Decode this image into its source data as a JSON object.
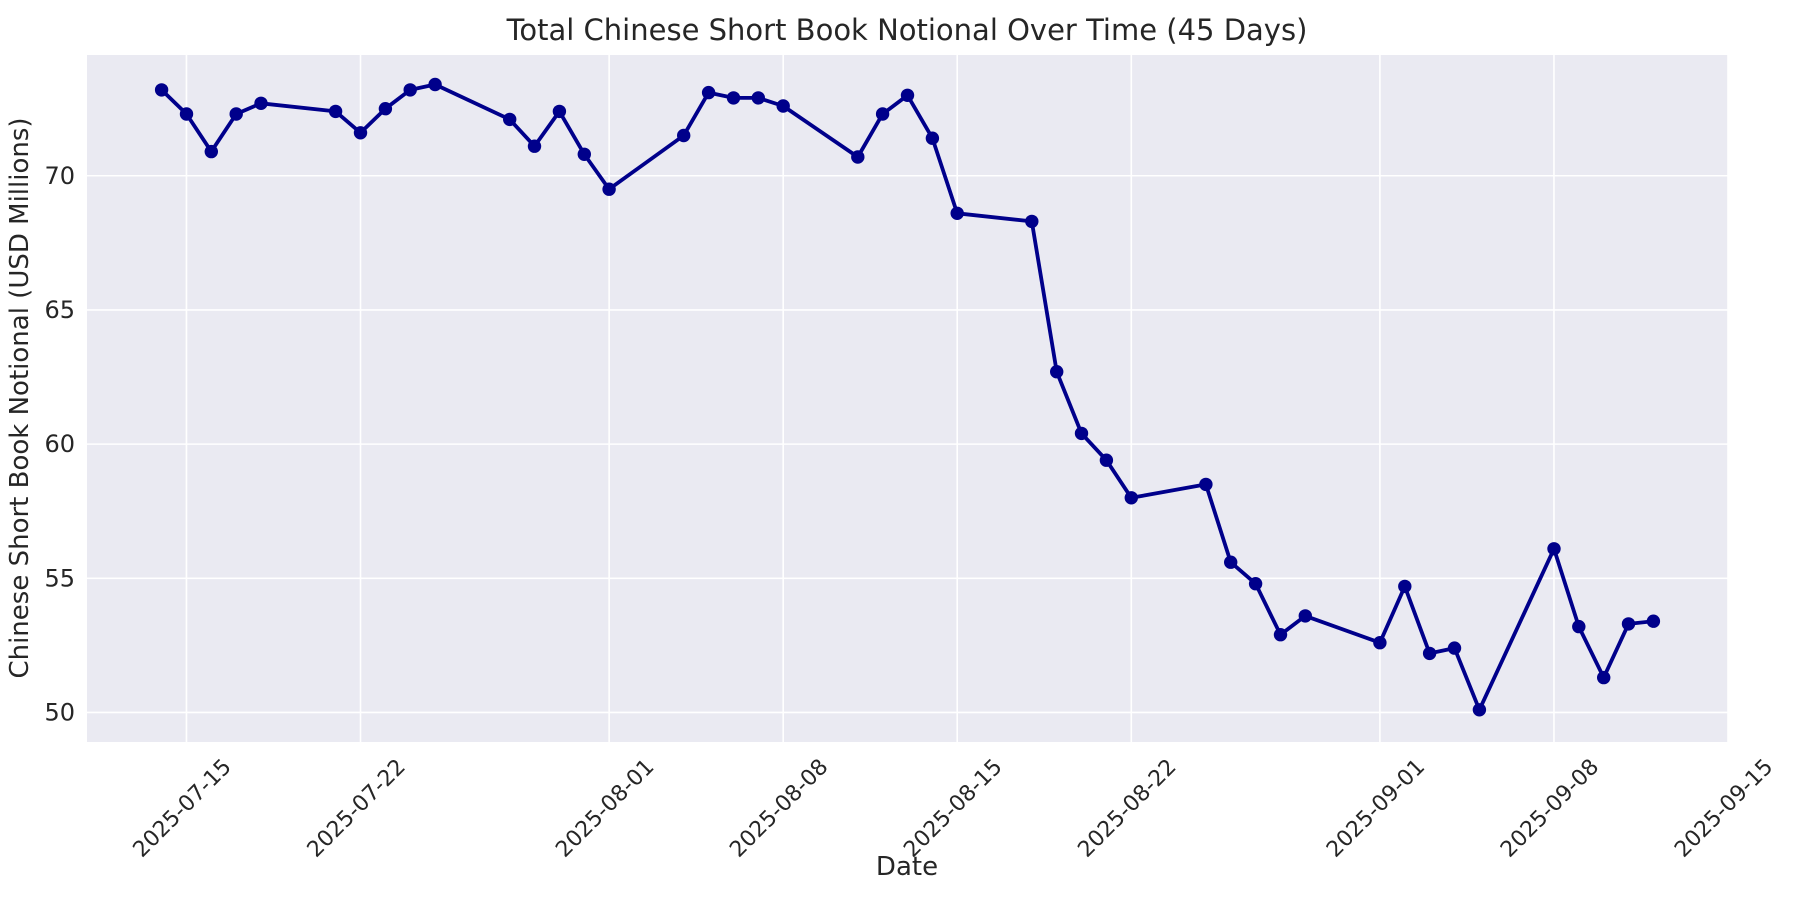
{
  "chart_data": {
    "type": "line",
    "title": "Total Chinese Short Book Notional Over Time (45 Days)",
    "xlabel": "Date",
    "ylabel": "Chinese Short Book Notional (USD Millions)",
    "grid": true,
    "legend_position": "none",
    "xlim": [
      "2025-07-11",
      "2025-09-15"
    ],
    "ylim": [
      48.9,
      74.5
    ],
    "x_ticks": [
      "2025-07-15",
      "2025-07-22",
      "2025-08-01",
      "2025-08-08",
      "2025-08-15",
      "2025-08-22",
      "2025-09-01",
      "2025-09-08",
      "2025-09-15"
    ],
    "y_ticks": [
      50,
      55,
      60,
      65,
      70
    ],
    "colors": {
      "line": "#00008b",
      "marker": "#00008b",
      "plot_background": "#eaeaf2",
      "grid": "#ffffff",
      "text": "#262626",
      "figure_background": "#ffffff"
    },
    "series": [
      {
        "name": "Total Chinese Short Book Notional",
        "marker": "o",
        "x": [
          "2025-07-14",
          "2025-07-15",
          "2025-07-16",
          "2025-07-17",
          "2025-07-18",
          "2025-07-21",
          "2025-07-22",
          "2025-07-23",
          "2025-07-24",
          "2025-07-25",
          "2025-07-28",
          "2025-07-29",
          "2025-07-30",
          "2025-07-31",
          "2025-08-01",
          "2025-08-04",
          "2025-08-05",
          "2025-08-06",
          "2025-08-07",
          "2025-08-08",
          "2025-08-11",
          "2025-08-12",
          "2025-08-13",
          "2025-08-14",
          "2025-08-15",
          "2025-08-18",
          "2025-08-19",
          "2025-08-20",
          "2025-08-21",
          "2025-08-22",
          "2025-08-25",
          "2025-08-26",
          "2025-08-27",
          "2025-08-28",
          "2025-08-29",
          "2025-09-01",
          "2025-09-02",
          "2025-09-03",
          "2025-09-04",
          "2025-09-05",
          "2025-09-08",
          "2025-09-09",
          "2025-09-10",
          "2025-09-11",
          "2025-09-12"
        ],
        "y": [
          73.2,
          72.3,
          70.9,
          72.3,
          72.7,
          72.4,
          71.6,
          72.5,
          73.2,
          73.4,
          72.1,
          71.1,
          72.4,
          70.8,
          69.5,
          71.5,
          73.1,
          72.9,
          72.9,
          72.6,
          70.7,
          72.3,
          73.0,
          71.4,
          68.6,
          68.3,
          62.7,
          60.4,
          59.4,
          58.0,
          58.5,
          55.6,
          54.8,
          52.9,
          53.6,
          52.6,
          54.7,
          52.2,
          52.4,
          50.1,
          56.1,
          53.2,
          51.3,
          53.3,
          53.4
        ]
      }
    ]
  }
}
